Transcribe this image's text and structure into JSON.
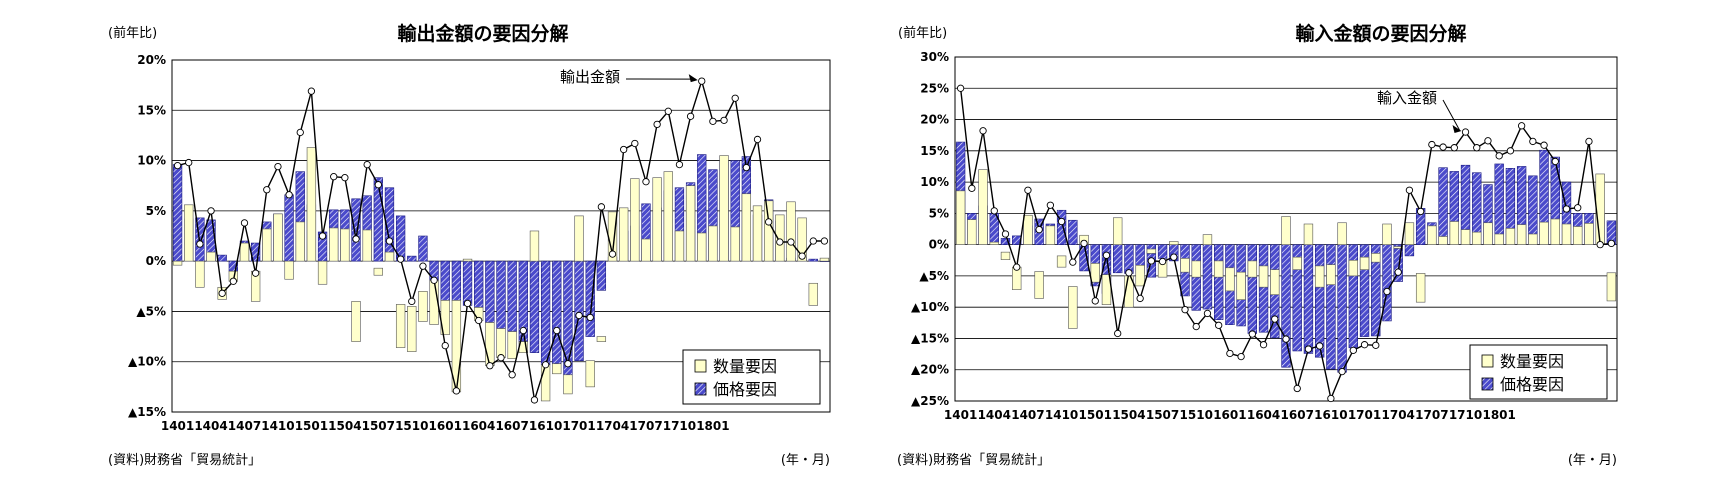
{
  "colors": {
    "quantity_fill": "#FFFFCC",
    "price_fill": "#4A4ACB",
    "line": "#000000",
    "grid": "#000000"
  },
  "chart_data": [
    {
      "type": "bar",
      "title": "輸出金額の要因分解",
      "ylabel": "(前年比)",
      "source": "(資料)財務省「貿易統計」",
      "xunit": "(年・月)",
      "annotation": "輸出金額",
      "ylim": [
        -15,
        20
      ],
      "yticks": [
        20,
        15,
        10,
        5,
        0,
        -5,
        -10,
        -15
      ],
      "ytick_labels": [
        "20%",
        "15%",
        "10%",
        "5%",
        "0%",
        "▲5%",
        "▲10%",
        "▲15%"
      ],
      "xticks": [
        "1401",
        "1404",
        "1407",
        "1410",
        "1501",
        "1504",
        "1507",
        "1510",
        "1601",
        "1604",
        "1607",
        "1610",
        "1701",
        "1704",
        "1707",
        "1710",
        "1801"
      ],
      "legend": [
        "数量要因",
        "価格要因"
      ],
      "legend_position": "bottom-right",
      "grid": true,
      "series": [
        {
          "name": "数量要因",
          "kind": "stacked-bar",
          "values": [
            -0.4,
            5.6,
            -2.6,
            0.9,
            -1.2,
            -1.0,
            1.8,
            -3.0,
            3.2,
            4.7,
            -1.8,
            3.9,
            11.3,
            -2.3,
            3.3,
            3.2,
            -4.0,
            3.1,
            -0.7,
            0.9,
            -4.3,
            -4.5,
            -3.0,
            -4.4,
            -3.4,
            -9.1,
            0.2,
            -1.3,
            -4.3,
            -2.9,
            -2.7,
            -1.1,
            3.0,
            -3.6,
            -1.0,
            -1.9,
            4.5,
            -2.6,
            -0.5,
            4.9,
            5.3,
            8.2,
            2.2,
            8.3,
            8.9,
            3.0,
            7.5,
            2.8,
            3.5,
            10.5,
            3.4,
            6.7,
            5.5,
            6.0,
            4.6,
            5.9,
            4.3,
            -2.2,
            0.3
          ],
          "bottoms": [
            0,
            0,
            0,
            0,
            -2.6,
            -1.0,
            0,
            -1.0,
            0,
            0,
            0,
            0,
            0,
            0,
            0,
            0,
            -4.0,
            0,
            -0.7,
            0,
            -4.3,
            -4.5,
            -3.0,
            -1.9,
            -3.9,
            -3.9,
            0,
            -4.6,
            -6.1,
            -6.7,
            -7.0,
            -8.0,
            0,
            -10.3,
            -10.2,
            -11.3,
            0,
            -9.9,
            -7.5,
            0,
            0,
            0,
            0,
            0,
            0,
            0,
            0,
            0,
            0,
            0,
            0,
            0,
            0,
            0,
            0,
            0,
            0,
            -2.2,
            0
          ]
        },
        {
          "name": "価格要因",
          "kind": "bar",
          "values": [
            9.6,
            4.2,
            4.3,
            4.1,
            0.6,
            -1.0,
            2.0,
            1.8,
            3.9,
            4.7,
            6.6,
            8.9,
            5.6,
            2.9,
            5.1,
            5.1,
            6.2,
            6.5,
            8.3,
            7.3,
            4.5,
            0.5,
            2.5,
            -1.9,
            -3.9,
            -3.9,
            -4.4,
            -4.6,
            -6.1,
            -6.7,
            -7.0,
            -8.0,
            -9.1,
            -10.3,
            -10.2,
            -11.3,
            -9.9,
            -7.5,
            -2.9,
            0.4,
            3.0,
            3.5,
            5.7,
            5.3,
            7.0,
            7.3,
            7.8,
            10.6,
            9.1,
            10.0,
            10.0,
            10.4,
            4.6,
            6.1,
            4.0,
            0.3,
            0.4,
            0.2,
            0.0
          ]
        },
        {
          "name": "輸出金額",
          "kind": "line",
          "values": [
            9.5,
            9.8,
            1.7,
            5.0,
            -3.2,
            -2.0,
            3.8,
            -1.2,
            7.1,
            9.4,
            6.6,
            12.8,
            16.9,
            2.5,
            8.4,
            8.3,
            2.2,
            9.6,
            7.6,
            2.0,
            0.2,
            -4.0,
            -0.5,
            -1.9,
            -8.4,
            -12.9,
            -4.2,
            -5.9,
            -10.4,
            -9.6,
            -11.3,
            -6.9,
            -13.8,
            -10.3,
            -6.9,
            -10.2,
            -5.4,
            -5.6,
            5.4,
            0.7,
            11.1,
            11.7,
            7.9,
            13.6,
            14.9,
            9.6,
            14.4,
            17.9,
            13.9,
            14.0,
            16.2,
            9.3,
            12.1,
            3.9,
            1.9,
            1.9,
            0.5,
            2.0,
            2.0
          ]
        }
      ]
    },
    {
      "type": "bar",
      "title": "輸入金額の要因分解",
      "ylabel": "(前年比)",
      "source": "(資料)財務省「貿易統計」",
      "xunit": "(年・月)",
      "annotation": "輸入金額",
      "ylim": [
        -25,
        30
      ],
      "yticks": [
        30,
        25,
        20,
        15,
        10,
        5,
        0,
        -5,
        -10,
        -15,
        -20,
        -25
      ],
      "ytick_labels": [
        "30%",
        "25%",
        "20%",
        "15%",
        "10%",
        "5%",
        "0%",
        "▲5%",
        "▲10%",
        "▲15%",
        "▲20%",
        "▲25%"
      ],
      "xticks": [
        "1401",
        "1404",
        "1407",
        "1410",
        "1501",
        "1504",
        "1507",
        "1510",
        "1601",
        "1604",
        "1607",
        "1610",
        "1701",
        "1704",
        "1707",
        "1710",
        "1801"
      ],
      "legend": [
        "数量要因",
        "価格要因"
      ],
      "legend_position": "bottom-right",
      "grid": true,
      "series": [
        {
          "name": "数量要因",
          "kind": "stacked-bar",
          "values": [
            8.6,
            4.0,
            12.0,
            0.4,
            -1.2,
            -3.6,
            4.7,
            -4.3,
            3.0,
            -1.8,
            -6.7,
            1.5,
            -3.0,
            -4.8,
            4.3,
            -5.0,
            -3.3,
            -0.7,
            -2.6,
            0.5,
            -2.2,
            -2.6,
            1.6,
            -2.6,
            -3.7,
            -4.4,
            -2.6,
            -3.4,
            -4.0,
            4.5,
            -2.0,
            3.3,
            -3.4,
            -3.2,
            3.5,
            -2.5,
            -2.0,
            -1.4,
            3.3,
            -0.3,
            3.5,
            -4.6,
            3.0,
            1.3,
            3.7,
            2.4,
            2.0,
            3.5,
            1.7,
            2.6,
            3.2,
            1.7,
            3.6,
            4.1,
            3.3,
            2.9,
            3.4,
            11.3,
            -4.5
          ],
          "bottoms": [
            0,
            0,
            0,
            0,
            -1.2,
            -3.6,
            0,
            -4.3,
            0,
            -1.8,
            -6.7,
            0,
            -3.0,
            -4.8,
            0,
            -5.0,
            -3.3,
            -0.7,
            -2.6,
            0,
            -2.2,
            -2.6,
            0,
            -2.6,
            -3.7,
            -4.4,
            -2.6,
            -3.4,
            -4.0,
            0,
            -2.0,
            0,
            -3.4,
            -3.2,
            0,
            -2.5,
            -2.0,
            -1.4,
            0,
            -0.3,
            0,
            -4.6,
            0,
            0,
            0,
            0,
            0,
            0,
            0,
            0,
            0,
            0,
            0,
            0,
            0,
            0,
            0,
            0,
            -4.5
          ]
        },
        {
          "name": "価格要因",
          "kind": "bar",
          "values": [
            16.4,
            5.0,
            6.2,
            5.0,
            1.0,
            1.4,
            3.0,
            4.1,
            3.3,
            5.5,
            3.9,
            -4.2,
            -6.6,
            -7.8,
            -4.5,
            -4.6,
            -4.6,
            -5.2,
            -2.2,
            -2.6,
            -8.2,
            -10.5,
            -10.3,
            -12.0,
            -12.8,
            -13.0,
            -14.2,
            -14.0,
            -14.9,
            -19.6,
            -17.0,
            -17.4,
            -18.0,
            -19.9,
            -20.4,
            -16.5,
            -14.7,
            -14.6,
            -12.2,
            -5.9,
            -1.8,
            5.8,
            3.5,
            12.3,
            11.7,
            12.7,
            11.5,
            9.6,
            12.9,
            12.2,
            12.5,
            11.0,
            15.1,
            14.0,
            10.0,
            5.0,
            5.0,
            4.9,
            3.8
          ]
        },
        {
          "name": "輸入金額",
          "kind": "line",
          "values": [
            25.0,
            9.0,
            18.2,
            5.4,
            1.7,
            -3.6,
            8.7,
            2.4,
            6.3,
            3.7,
            -2.8,
            0.2,
            -9.0,
            -1.7,
            -14.2,
            -4.5,
            -8.6,
            -2.6,
            -2.7,
            -2.0,
            -10.4,
            -13.1,
            -11.0,
            -12.9,
            -17.4,
            -17.9,
            -14.3,
            -16.0,
            -11.9,
            -15.1,
            -23.0,
            -16.7,
            -16.2,
            -24.6,
            -20.3,
            -16.9,
            -16.0,
            -16.1,
            -7.5,
            -4.4,
            8.7,
            5.3,
            16.0,
            15.6,
            15.5,
            18.0,
            15.5,
            16.6,
            14.2,
            15.0,
            19.0,
            16.5,
            15.9,
            13.3,
            5.7,
            5.9,
            16.5,
            0.0,
            0.2
          ]
        }
      ]
    }
  ]
}
